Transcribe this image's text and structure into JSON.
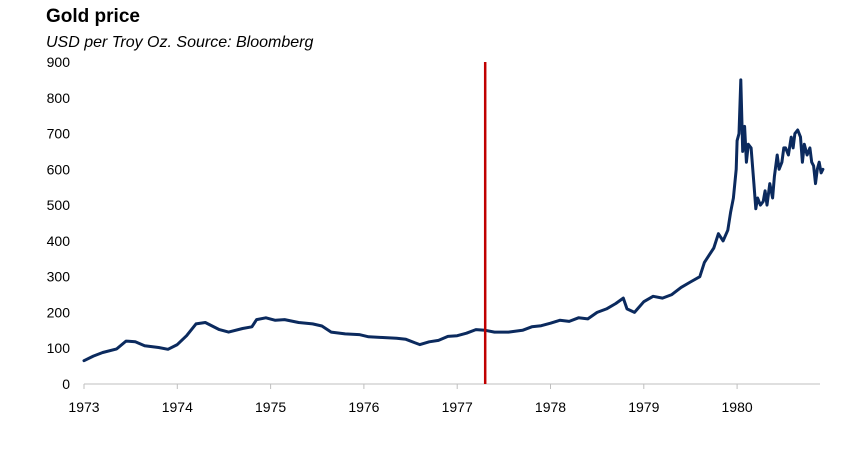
{
  "chart_data": {
    "type": "line",
    "title": "Gold price",
    "subtitle": "USD per Troy Oz. Source: Bloomberg",
    "xlabel": "",
    "ylabel": "",
    "ylim": [
      0,
      900
    ],
    "xlim": [
      1973.0,
      1980.93
    ],
    "y_ticks": [
      0,
      100,
      200,
      300,
      400,
      500,
      600,
      700,
      800,
      900
    ],
    "x_ticks": [
      1973,
      1974,
      1975,
      1976,
      1977,
      1978,
      1979,
      1980
    ],
    "x_tick_labels": [
      "1973",
      "1974",
      "1975",
      "1976",
      "1977",
      "1978",
      "1979",
      "1980"
    ],
    "grid": false,
    "legend": "none",
    "reference_line": {
      "x": 1977.3,
      "color": "#c00000"
    },
    "series": [
      {
        "color": "#0b2a5e",
        "x": [
          1973.0,
          1973.1,
          1973.2,
          1973.35,
          1973.45,
          1973.55,
          1973.65,
          1973.8,
          1973.9,
          1974.0,
          1974.1,
          1974.2,
          1974.3,
          1974.45,
          1974.55,
          1974.7,
          1974.8,
          1974.85,
          1974.95,
          1975.05,
          1975.15,
          1975.3,
          1975.45,
          1975.55,
          1975.65,
          1975.8,
          1975.95,
          1976.05,
          1976.2,
          1976.35,
          1976.45,
          1976.55,
          1976.6,
          1976.7,
          1976.8,
          1976.9,
          1977.0,
          1977.1,
          1977.2,
          1977.3,
          1977.4,
          1977.55,
          1977.7,
          1977.8,
          1977.9,
          1978.0,
          1978.1,
          1978.2,
          1978.3,
          1978.4,
          1978.5,
          1978.6,
          1978.7,
          1978.78,
          1978.82,
          1978.9,
          1979.0,
          1979.1,
          1979.2,
          1979.3,
          1979.4,
          1979.5,
          1979.6,
          1979.65,
          1979.7,
          1979.75,
          1979.8,
          1979.85,
          1979.9,
          1979.93,
          1979.96,
          1979.99,
          1980.0,
          1980.02,
          1980.04,
          1980.06,
          1980.08,
          1980.1,
          1980.12,
          1980.15,
          1980.18,
          1980.2,
          1980.22,
          1980.25,
          1980.28,
          1980.3,
          1980.32,
          1980.35,
          1980.38,
          1980.4,
          1980.43,
          1980.45,
          1980.48,
          1980.5,
          1980.52,
          1980.55,
          1980.58,
          1980.6,
          1980.62,
          1980.65,
          1980.68,
          1980.7,
          1980.72,
          1980.75,
          1980.78,
          1980.8,
          1980.82,
          1980.84,
          1980.86,
          1980.88,
          1980.9,
          1980.92
        ],
        "values": [
          65,
          78,
          88,
          98,
          120,
          118,
          107,
          102,
          97,
          110,
          135,
          168,
          172,
          152,
          145,
          155,
          160,
          180,
          185,
          178,
          180,
          172,
          168,
          162,
          145,
          140,
          138,
          132,
          130,
          128,
          125,
          115,
          110,
          118,
          122,
          133,
          135,
          142,
          152,
          150,
          145,
          145,
          150,
          160,
          163,
          170,
          178,
          175,
          185,
          182,
          200,
          210,
          225,
          240,
          210,
          200,
          230,
          245,
          240,
          250,
          270,
          285,
          300,
          340,
          360,
          380,
          420,
          400,
          430,
          480,
          520,
          600,
          680,
          700,
          850,
          650,
          720,
          620,
          670,
          660,
          560,
          490,
          520,
          500,
          510,
          540,
          500,
          560,
          520,
          580,
          640,
          600,
          620,
          660,
          660,
          640,
          690,
          660,
          700,
          710,
          690,
          620,
          670,
          640,
          660,
          620,
          610,
          560,
          600,
          620,
          590,
          600
        ]
      }
    ]
  }
}
